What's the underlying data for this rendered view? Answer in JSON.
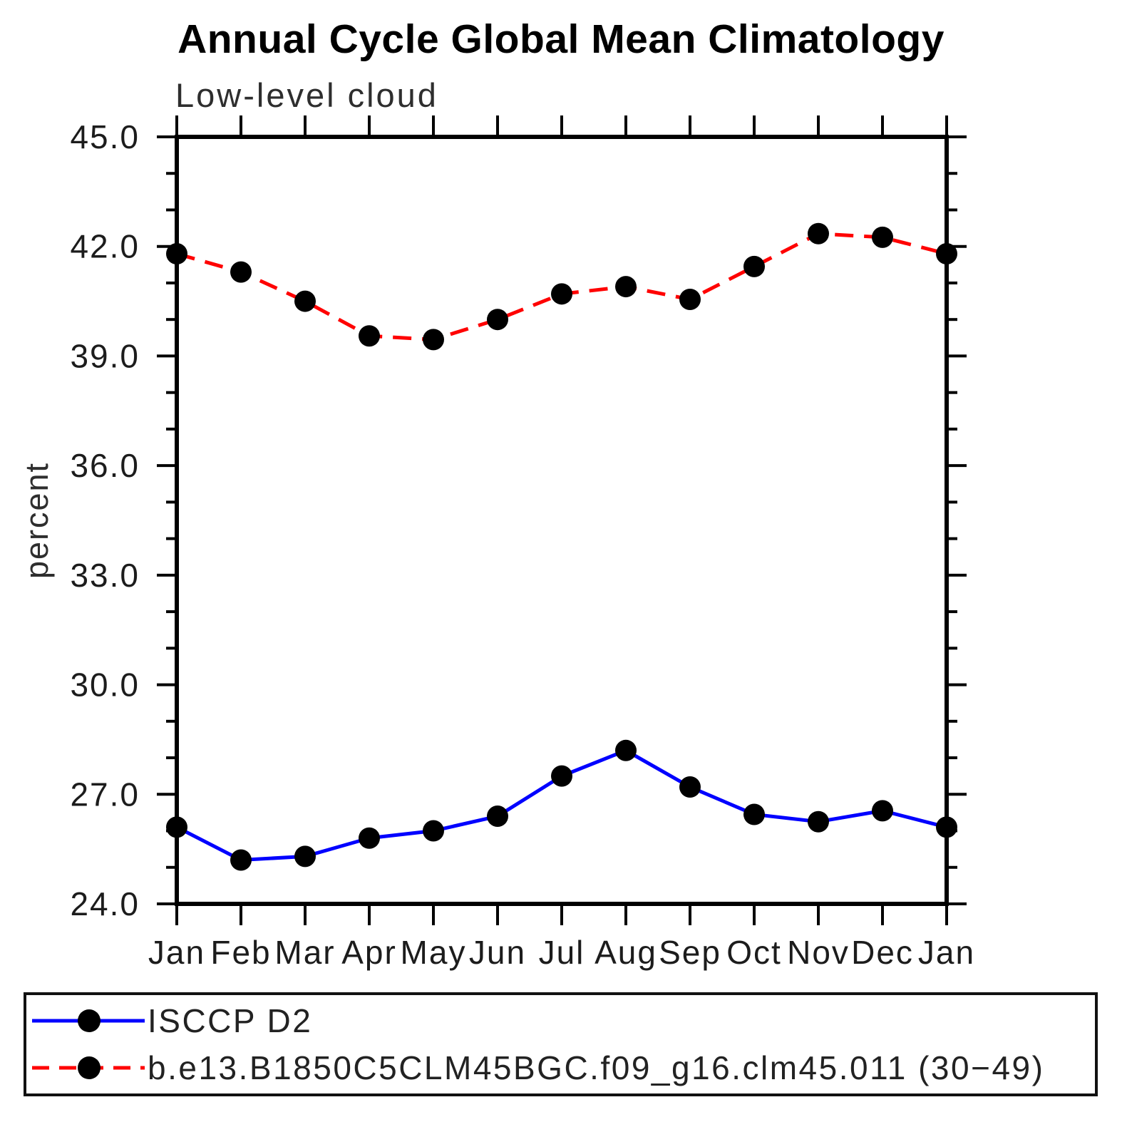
{
  "chart_data": {
    "type": "line",
    "title": "Annual Cycle Global Mean Climatology",
    "subtitle": "Low-level cloud",
    "ylabel": "percent",
    "ylim": [
      24.0,
      45.0
    ],
    "ytick_major_step": 3.0,
    "ytick_minor_step": 1.0,
    "ytick_labels": [
      "45.0",
      "42.0",
      "39.0",
      "36.0",
      "33.0",
      "30.0",
      "27.0",
      "24.0"
    ],
    "categories": [
      "Jan",
      "Feb",
      "Mar",
      "Apr",
      "May",
      "Jun",
      "Jul",
      "Aug",
      "Sep",
      "Oct",
      "Nov",
      "Dec",
      "Jan"
    ],
    "grid": "off",
    "legend_position": "bottom",
    "series": [
      {
        "name": "ISCCP D2",
        "line_color": "#0000ff",
        "line_style": "solid",
        "marker": "filled-circle",
        "marker_color": "#000000",
        "values": [
          26.1,
          25.2,
          25.3,
          25.8,
          26.0,
          26.4,
          27.5,
          28.2,
          27.2,
          26.45,
          26.25,
          26.55,
          26.1
        ]
      },
      {
        "name": "b.e13.B1850C5CLM45BGC.f09_g16.clm45.011 (30−49)",
        "line_color": "#ff0000",
        "line_style": "dashed",
        "marker": "filled-circle",
        "marker_color": "#000000",
        "values": [
          41.8,
          41.3,
          40.5,
          39.55,
          39.45,
          40.0,
          40.7,
          40.9,
          40.55,
          41.45,
          42.35,
          42.25,
          41.8
        ]
      }
    ],
    "axis_color": "#000000"
  }
}
